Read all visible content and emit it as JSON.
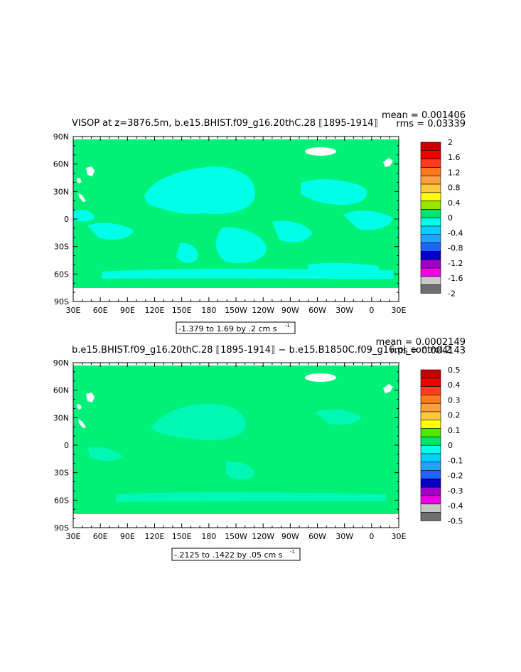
{
  "chart_data": [
    {
      "type": "heatmap",
      "title": "VISOP at z=3876.5m, b.e15.BHIST.f09_g16.20thC.28 ⟦1895-1914⟧",
      "stats": {
        "mean": "mean = 0.001406",
        "rms": "rms = 0.03339"
      },
      "x_tick_labels": [
        "30E",
        "60E",
        "90E",
        "120E",
        "150E",
        "180",
        "150W",
        "120W",
        "90W",
        "60W",
        "30W",
        "0",
        "30E"
      ],
      "y_tick_labels": [
        "90N",
        "60N",
        "30N",
        "0",
        "30S",
        "60S",
        "90S"
      ],
      "colorbar_labels": [
        "2",
        "1.6",
        "1.2",
        "0.8",
        "0.4",
        "0",
        "-0.4",
        "-0.8",
        "-1.2",
        "-1.6",
        "-2"
      ],
      "colorbar_colors": [
        "#c80000",
        "#ee0000",
        "#ff3c1e",
        "#ff7a1e",
        "#ffa040",
        "#ffc83c",
        "#ffff00",
        "#96e600",
        "#00e664",
        "#00ffe6",
        "#00d2ff",
        "#28a0ff",
        "#1e64ff",
        "#0000c8",
        "#a000c8",
        "#f000e6",
        "#c8c8c8",
        "#6e6e6e"
      ],
      "range_label": "-1.379 to 1.69 by .2 cm s",
      "range_exp": "-1"
    },
    {
      "type": "heatmap",
      "title": "b.e15.BHIST.f09_g16.20thC.28 ⟦1895-1914⟧ − b.e15.B1850C.f09_g16.pi_control.2",
      "stats": {
        "mean": "mean = 0.0002149",
        "rms": "rms = 0.004143"
      },
      "x_tick_labels": [
        "30E",
        "60E",
        "90E",
        "120E",
        "150E",
        "180",
        "150W",
        "120W",
        "90W",
        "60W",
        "30W",
        "0",
        "30E"
      ],
      "y_tick_labels": [
        "90N",
        "60N",
        "30N",
        "0",
        "30S",
        "60S",
        "90S"
      ],
      "colorbar_labels": [
        "0.5",
        "0.4",
        "0.3",
        "0.2",
        "0.1",
        "0",
        "-0.1",
        "-0.2",
        "-0.3",
        "-0.4",
        "-0.5"
      ],
      "colorbar_colors": [
        "#c80000",
        "#ee0000",
        "#ff3c1e",
        "#ff7a1e",
        "#ffa040",
        "#ffc83c",
        "#ffff00",
        "#50e600",
        "#00e664",
        "#00ffe6",
        "#00d2ff",
        "#28a0ff",
        "#1e64ff",
        "#0000c8",
        "#a000c8",
        "#f000e6",
        "#c8c8c8",
        "#6e6e6e"
      ],
      "range_label": "-.2125 to .1422 by .05 cm s",
      "range_exp": "-1"
    }
  ],
  "colors": {
    "ocean": "#00f078",
    "anomaly": "#00ffe6",
    "land": "#ffffff"
  }
}
